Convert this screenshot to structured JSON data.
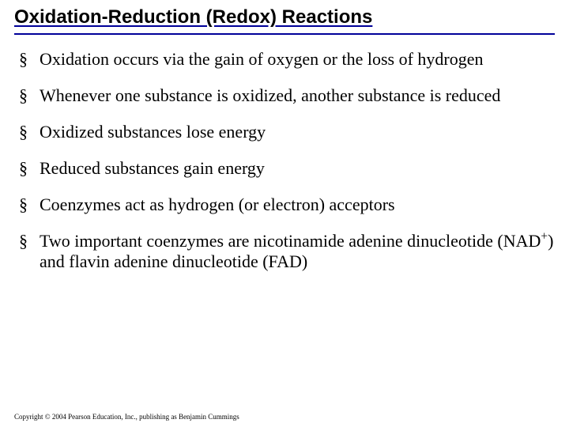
{
  "slide": {
    "title": "Oxidation-Reduction (Redox) Reactions",
    "title_color": "#000000",
    "underline_color": "#000099",
    "title_fontsize": 24,
    "title_font": "Arial, sans-serif",
    "title_weight": "bold",
    "body_font": "Times New Roman, serif",
    "body_fontsize": 22,
    "bullet_marker": "§",
    "bullet_marker_color": "#000000",
    "background_color": "#ffffff",
    "bullets": [
      "Oxidation occurs via the gain of oxygen or the loss of hydrogen",
      "Whenever one substance is oxidized, another substance is reduced",
      "Oxidized substances lose energy",
      "Reduced substances gain energy",
      "Coenzymes act as hydrogen (or electron) acceptors",
      "Two important coenzymes are nicotinamide adenine dinucleotide (NAD+) and flavin adenine dinucleotide (FAD)"
    ],
    "bullets_html": [
      "Oxidation occurs via the gain of oxygen or the loss of hydrogen",
      "Whenever one substance is oxidized, another substance is reduced",
      "Oxidized substances lose energy",
      "Reduced substances gain energy",
      "Coenzymes act as hydrogen (or electron) acceptors",
      "Two important coenzymes are nicotinamide adenine dinucleotide (NAD<sup>+</sup>) and flavin adenine dinucleotide (FAD)"
    ],
    "copyright": "Copyright © 2004 Pearson Education, Inc., publishing as Benjamin Cummings",
    "copyright_fontsize": 9
  }
}
